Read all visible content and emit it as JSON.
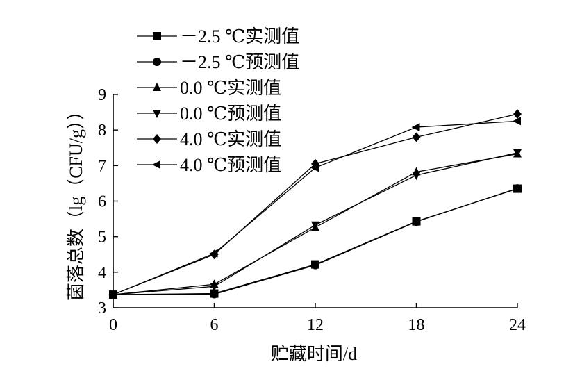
{
  "chart_data": {
    "type": "line",
    "title": "",
    "xlabel": "贮藏时间/d",
    "ylabel": "菌落总数（lg（CFU/g））",
    "x": [
      0,
      6,
      12,
      18,
      24
    ],
    "xlim": [
      0,
      24
    ],
    "ylim": [
      3,
      9
    ],
    "xticks": [
      "0",
      "6",
      "12",
      "18",
      "24"
    ],
    "yticks": [
      "3",
      "4",
      "5",
      "6",
      "7",
      "8",
      "9"
    ],
    "grid": false,
    "legend_position": "top-left",
    "colors": {
      "line": "#000000",
      "marker": "#000000"
    },
    "series": [
      {
        "name": "－2.5 ℃实测值",
        "marker": "square",
        "values": [
          3.37,
          3.4,
          4.22,
          5.43,
          6.35
        ]
      },
      {
        "name": "－2.5 ℃预测值",
        "marker": "circle",
        "values": [
          3.37,
          3.38,
          4.2,
          5.42,
          6.36
        ]
      },
      {
        "name": "0.0 ℃实测值",
        "marker": "triangle-up",
        "values": [
          3.37,
          3.66,
          5.26,
          6.82,
          7.33
        ]
      },
      {
        "name": "0.0 ℃预测值",
        "marker": "triangle-down",
        "values": [
          3.37,
          3.6,
          5.33,
          6.73,
          7.36
        ]
      },
      {
        "name": "4.0 ℃实测值",
        "marker": "diamond",
        "values": [
          3.37,
          4.5,
          7.05,
          7.8,
          8.45
        ]
      },
      {
        "name": "4.0 ℃预测值",
        "marker": "triangle-left",
        "values": [
          3.37,
          4.53,
          6.94,
          8.08,
          8.25
        ]
      }
    ]
  }
}
